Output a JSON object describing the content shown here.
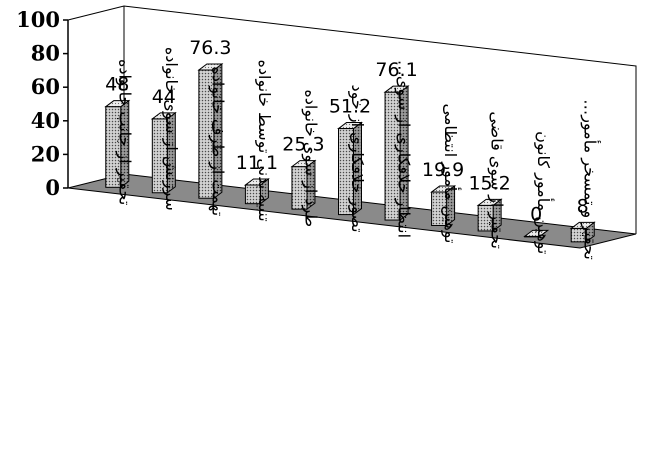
{
  "chart_data": {
    "type": "bar",
    "categories": [
      "تحقیر از جانب خانواده",
      "سرزنش از سوی خانواده",
      "تهمت از طرف خانواده",
      "تنبیه بدنی توسط خانواده",
      "طرد از سوی خانواده",
      "تصور خلافکاری از خود",
      "انتظار خلافکاری از سوی…",
      "توهین مأمور انتظامی",
      "تحقیر از سوی قاضی",
      "توهین مأمور کانون",
      "تحقیر و تمسخر مأمور…"
    ],
    "values": [
      48,
      44,
      76.3,
      11.1,
      25.3,
      51.2,
      76.1,
      19.9,
      15.2,
      0,
      8
    ],
    "data_labels": [
      "48",
      "44",
      "76.3",
      "11.1",
      "25.3",
      "51.2",
      "76.1",
      "19.9",
      "15.2",
      "0",
      "8"
    ],
    "yticks": [
      "100",
      "80",
      "60",
      "40",
      "20",
      "0"
    ],
    "ylim": [
      0,
      100
    ],
    "title": "",
    "xlabel": "",
    "ylabel": "",
    "grid": false,
    "legend": "none",
    "bar_style": "3d-dotted",
    "colors": {
      "bar_front": "#bdbdbd",
      "bar_side": "#8f8f8f",
      "bar_top": "#e6e6e6",
      "floor": "#8a8a8a",
      "axis": "#000000"
    }
  }
}
